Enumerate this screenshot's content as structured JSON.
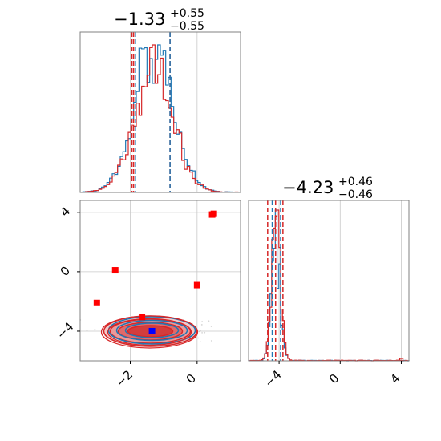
{
  "chart_data": {
    "type": "corner",
    "grid": true,
    "series": [
      {
        "name": "",
        "color": "#1f77b4"
      },
      {
        "name": "",
        "color": "#d62728"
      }
    ],
    "params": [
      {
        "title_value": "−1.33",
        "title_plus": "+0.55",
        "title_minus": "−0.55",
        "xlim": [
          -3.5,
          1.3
        ],
        "ticks": [
          -2,
          0
        ],
        "tick_labels": [
          "−2",
          "0"
        ],
        "quantiles": {
          "#1f77b4": [
            -1.84,
            -0.81
          ],
          "#d62728": [
            -1.95,
            -1.9,
            -0.81
          ]
        },
        "hist_bins": [
          -3.5,
          1.3
        ],
        "hist_peak": -1.3
      },
      {
        "title_value": "−4.23",
        "title_plus": "+0.46",
        "title_minus": "−0.46",
        "xlim": [
          -6,
          4.5
        ],
        "ticks": [
          -4,
          0,
          4
        ],
        "tick_labels": [
          "−4",
          "0",
          "4"
        ],
        "quantiles": {
          "#1f77b4": [
            -4.45,
            -3.9
          ],
          "#d62728": [
            -4.75,
            -4.23,
            -3.75
          ]
        },
        "hist_peak": -4.2
      }
    ],
    "joint": {
      "xlim": [
        -3.5,
        1.3
      ],
      "ylim": [
        -6,
        4.8
      ],
      "xticks": [
        -2,
        0
      ],
      "xtick_labels": [
        "−2",
        "0"
      ],
      "yticks": [
        -4,
        0,
        4
      ],
      "ytick_labels": [
        "−4",
        "0",
        "4"
      ],
      "density_center": [
        -1.4,
        -4.0
      ],
      "blue_marker": {
        "x": -1.35,
        "y": -4.0,
        "color": "#0000ff"
      },
      "red_markers": [
        {
          "x": 0.45,
          "y": 3.85
        },
        {
          "x": 0.5,
          "y": 3.9
        },
        {
          "x": -2.45,
          "y": 0.1
        },
        {
          "x": 0.0,
          "y": -0.9
        },
        {
          "x": -3.0,
          "y": -2.1
        },
        {
          "x": -1.65,
          "y": -3.05
        }
      ]
    }
  }
}
